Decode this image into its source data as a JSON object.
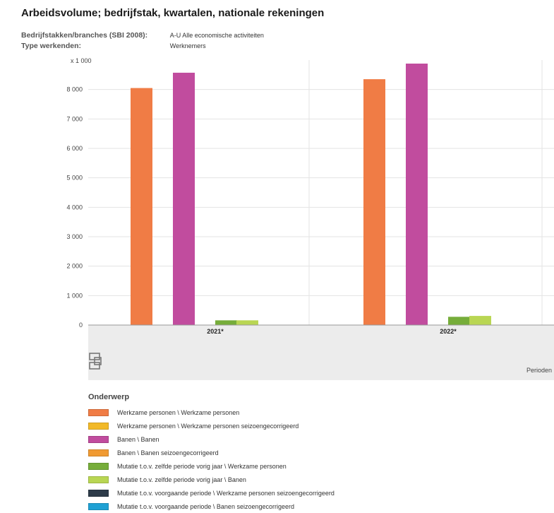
{
  "page": {
    "title": "Arbeidsvolume; bedrijfstak, kwartalen, nationale rekeningen",
    "meta": [
      {
        "label": "Bedrijfstakken/branches (SBI 2008):",
        "value": "A-U Alle economische activiteiten"
      },
      {
        "label": "Type werkenden:",
        "value": "Werknemers"
      }
    ]
  },
  "chart_data": {
    "type": "bar",
    "title": "Arbeidsvolume; bedrijfstak, kwartalen, nationale rekeningen",
    "ylabel": "x 1 000",
    "xlabel": "Perioden",
    "ylim": [
      0,
      9000
    ],
    "yticks": [
      0,
      1000,
      2000,
      3000,
      4000,
      5000,
      6000,
      7000,
      8000
    ],
    "ytick_labels": [
      "0",
      "1 000",
      "2 000",
      "3 000",
      "4 000",
      "5 000",
      "6 000",
      "7 000",
      "8 000"
    ],
    "categories": [
      "2021*",
      "2022*"
    ],
    "grid": true,
    "legend_position": "bottom",
    "legend_title": "Onderwerp",
    "series": [
      {
        "name": "Werkzame personen \\ Werkzame personen",
        "color": "#f07c45",
        "values": [
          8050,
          8350
        ]
      },
      {
        "name": "Werkzame personen \\ Werkzame personen seizoengecorrigeerd",
        "color": "#f2b928",
        "values": [
          null,
          null
        ]
      },
      {
        "name": "Banen \\ Banen",
        "color": "#c14c9e",
        "values": [
          8570,
          8880
        ]
      },
      {
        "name": "Banen \\ Banen seizoengecorrigeerd",
        "color": "#f09a32",
        "values": [
          null,
          null
        ]
      },
      {
        "name": "Mutatie t.o.v. zelfde periode vorig jaar \\ Werkzame personen",
        "color": "#76ad3a",
        "values": [
          160,
          280
        ]
      },
      {
        "name": "Mutatie t.o.v. zelfde periode vorig jaar \\ Banen",
        "color": "#b9d653",
        "values": [
          160,
          310
        ]
      },
      {
        "name": "Mutatie t.o.v. voorgaande periode \\ Werkzame personen seizoengecorrigeerd",
        "color": "#2d3b49",
        "values": [
          null,
          null
        ]
      },
      {
        "name": "Mutatie t.o.v. voorgaande periode \\ Banen seizoengecorrigeerd",
        "color": "#1fa1d4",
        "values": [
          null,
          null
        ]
      }
    ]
  }
}
